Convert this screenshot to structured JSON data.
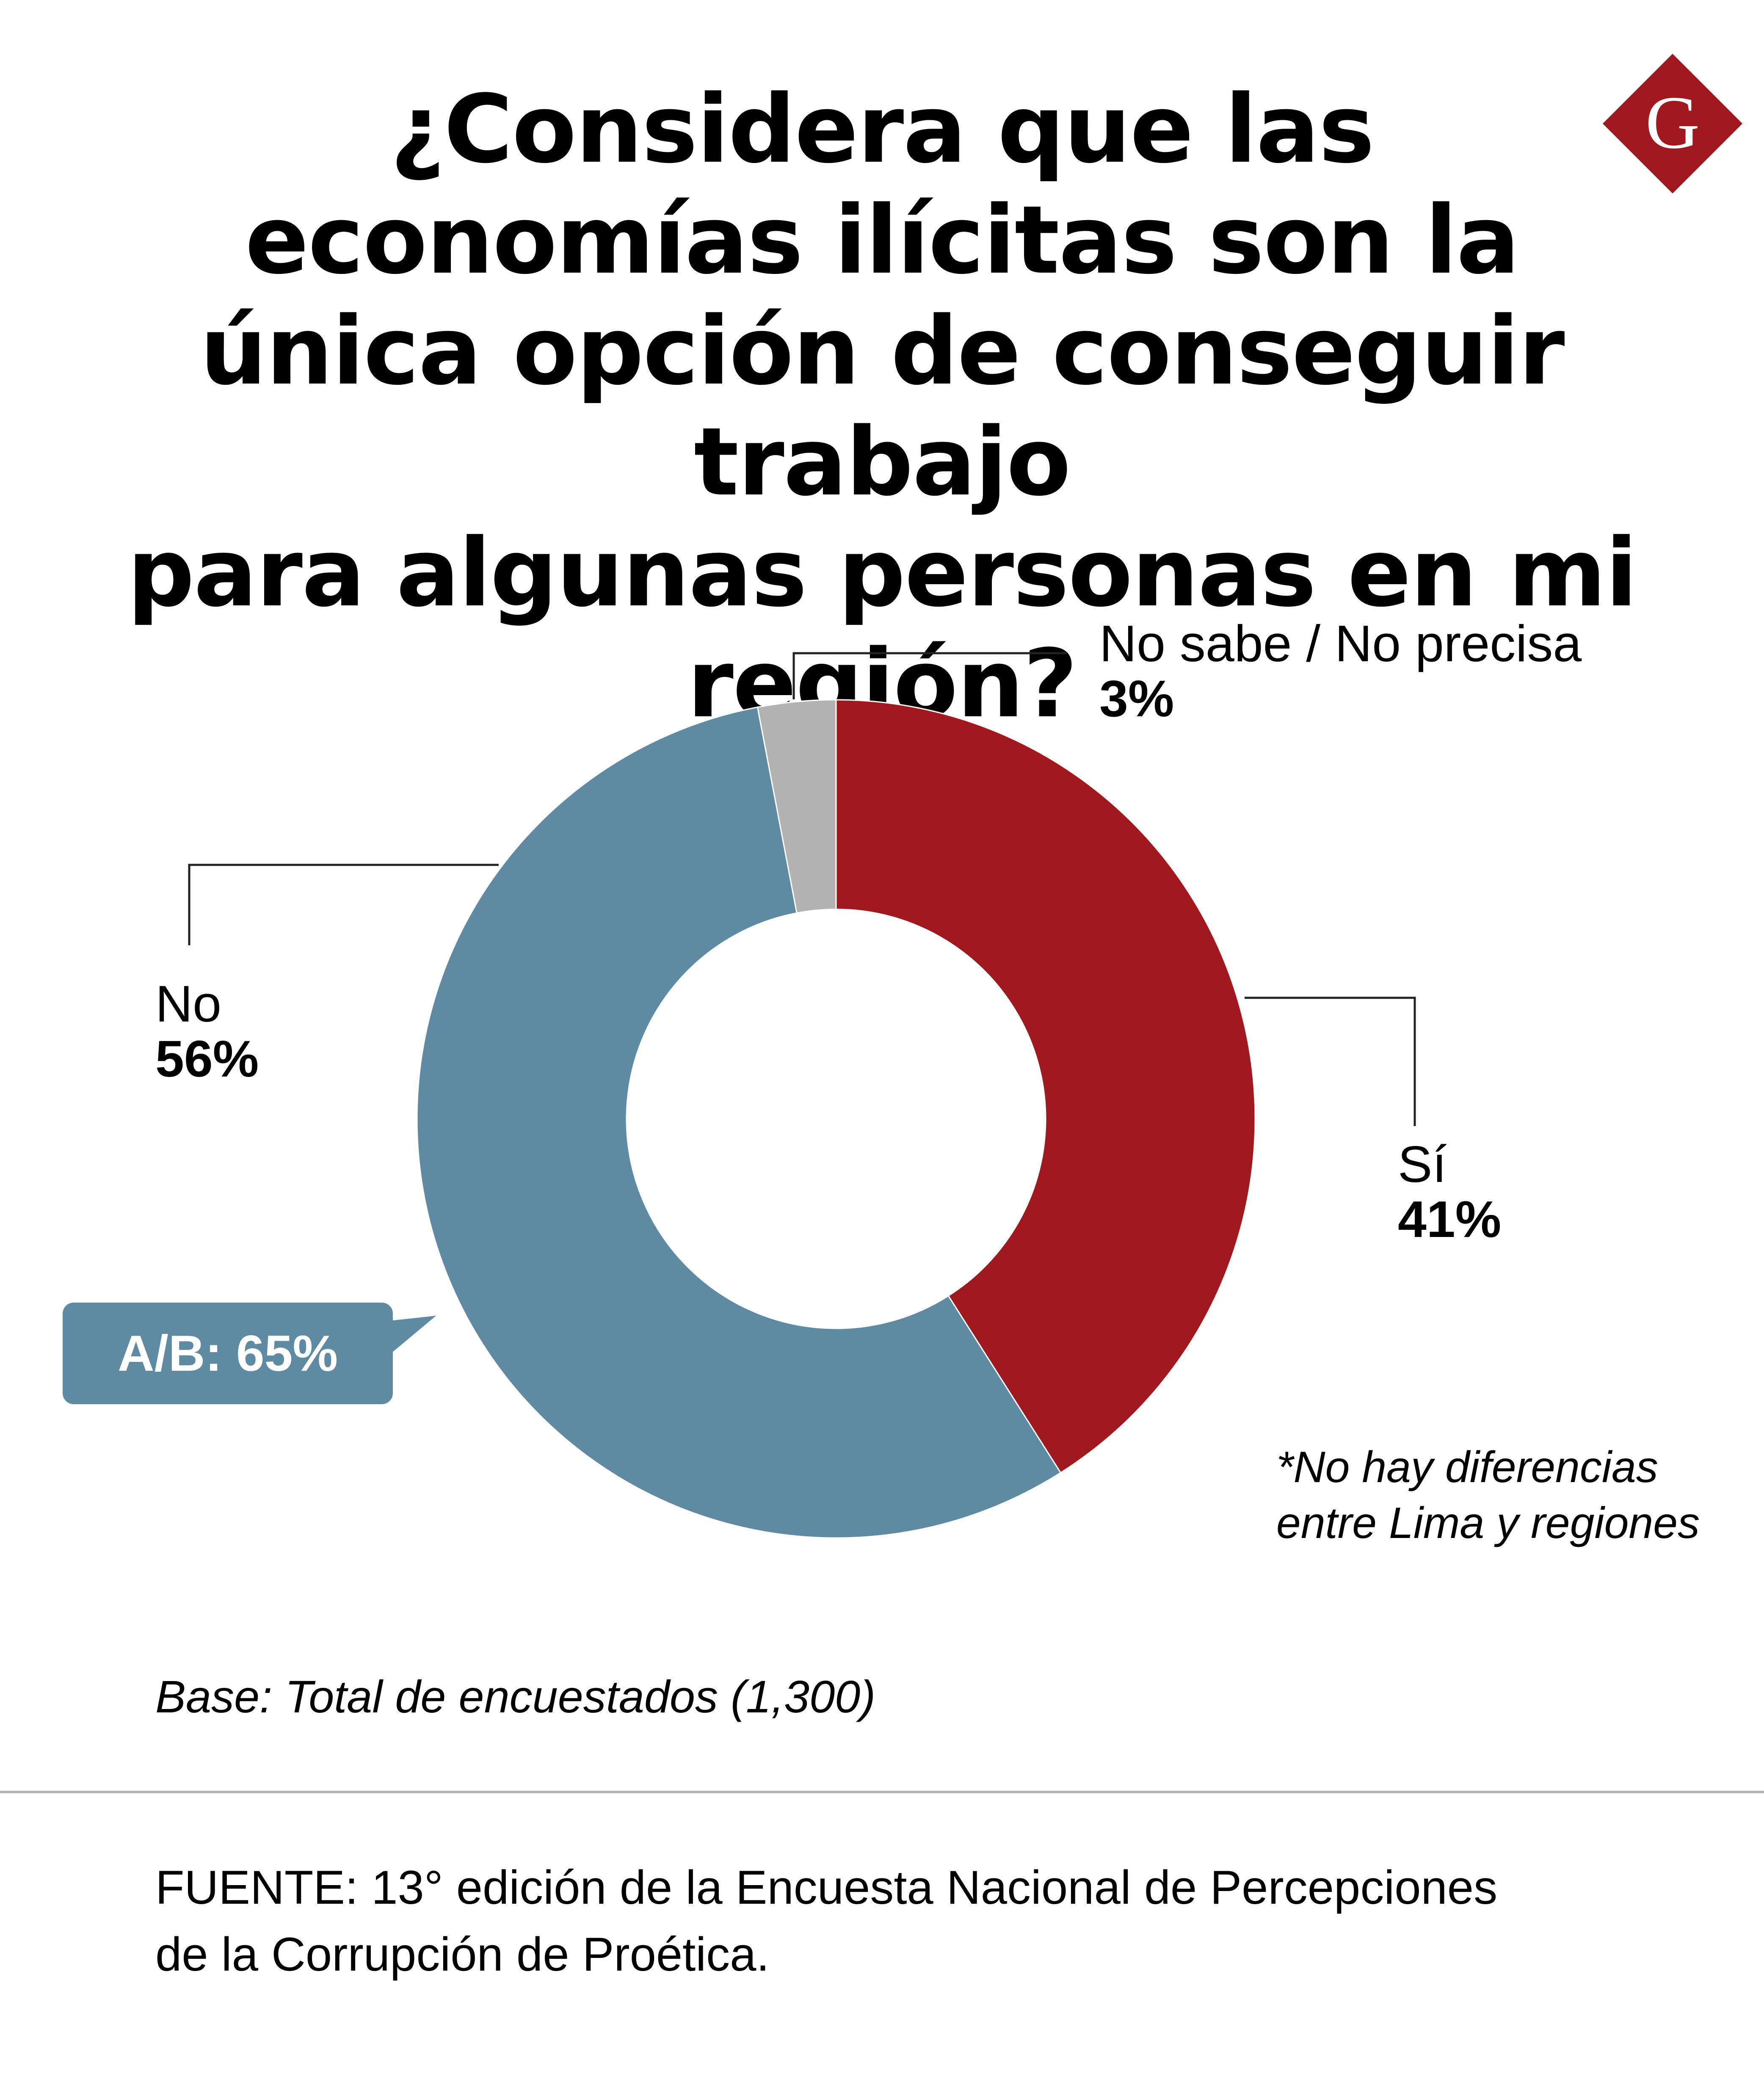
{
  "title_lines": [
    "¿Considera que las",
    "economías ilícitas son la",
    "única opción de conseguir trabajo",
    "para algunas personas en mi región?"
  ],
  "logo": {
    "letter": "G",
    "color": "#a0191e"
  },
  "chart_data": {
    "type": "pie",
    "variant": "donut",
    "slices": [
      {
        "label": "Sí",
        "value": 41,
        "display": "41%",
        "color": "#a0191e"
      },
      {
        "label": "No",
        "value": 56,
        "display": "56%",
        "color": "#5e8aa3"
      },
      {
        "label": "No sabe / No precisa",
        "value": 3,
        "display": "3%",
        "color": "#b3b2b3"
      }
    ],
    "start": "top, clockwise"
  },
  "callout": {
    "text": "A/B: 65%",
    "color": "#5e8aa3"
  },
  "note_lines": [
    "*No hay diferencias",
    "entre Lima y regiones"
  ],
  "base": "Base: Total de encuestados (1,300)",
  "source_lines": [
    "FUENTE: 13° edición de la Encuesta Nacional de Percepciones",
    "de la Corrupción de Proética."
  ]
}
